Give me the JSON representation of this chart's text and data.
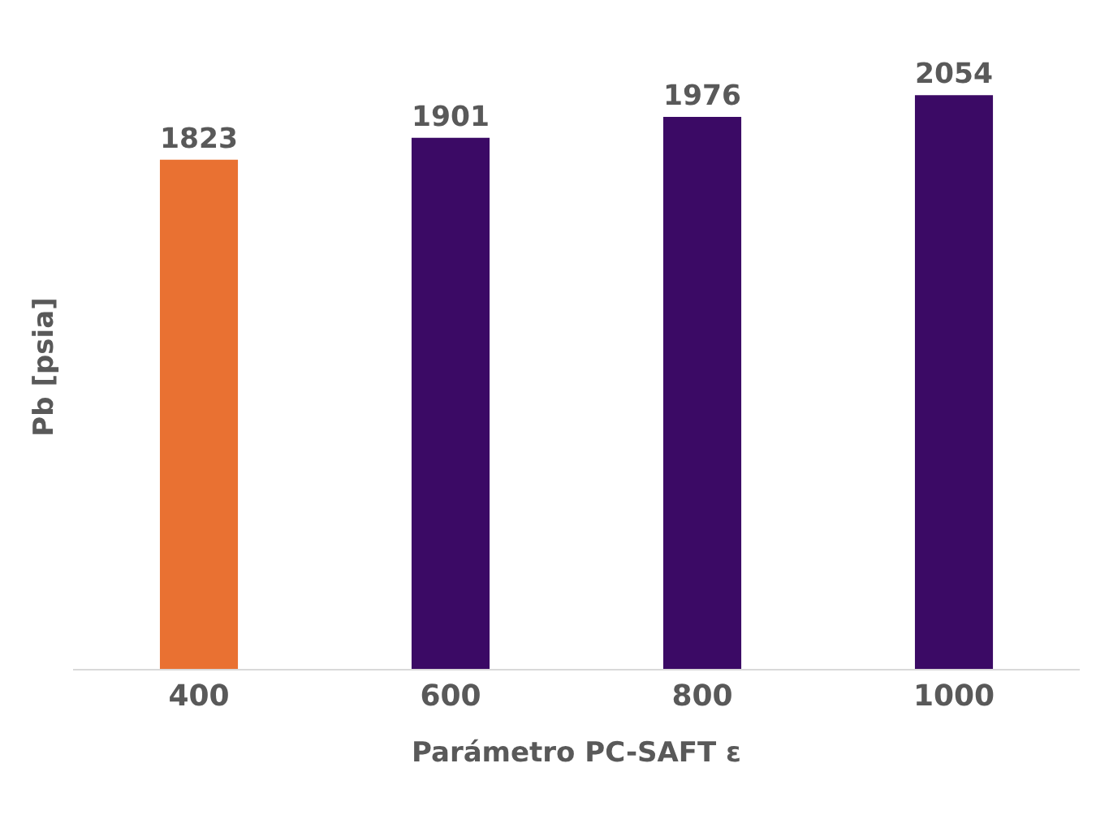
{
  "chart_data": {
    "type": "bar",
    "xlabel": "Parámetro PC-SAFT ε",
    "ylabel": "Pb [psia]",
    "categories": [
      "400",
      "600",
      "800",
      "1000"
    ],
    "values": [
      1823,
      1901,
      1976,
      2054
    ],
    "colors": [
      "#e97132",
      "#3b0a65",
      "#3b0a65",
      "#3b0a65"
    ],
    "tick_labels": "x",
    "data_labels": true
  }
}
